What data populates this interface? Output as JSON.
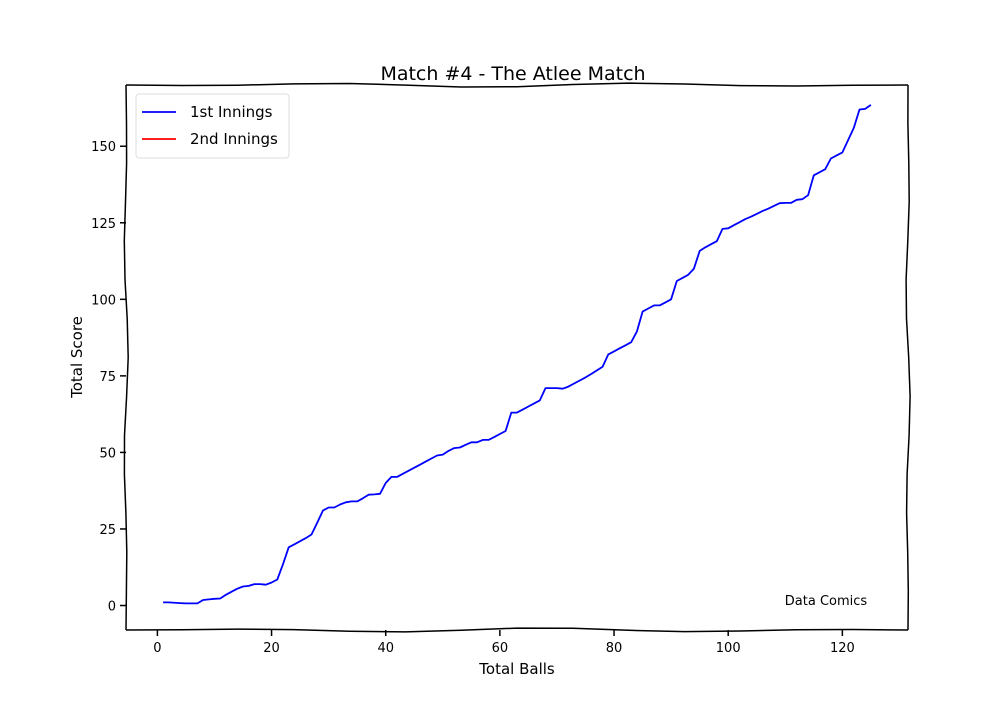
{
  "chart_data": {
    "type": "line",
    "title": "Match #4 - The Atlee Match",
    "xlabel": "Total Balls",
    "ylabel": "Total Score",
    "xlim": [
      -5.5,
      131.5
    ],
    "ylim": [
      -8,
      170
    ],
    "xticks": [
      0,
      20,
      40,
      60,
      80,
      100,
      120
    ],
    "yticks": [
      0,
      25,
      50,
      75,
      100,
      125,
      150
    ],
    "grid": false,
    "legend_position": "top-left",
    "annotation": "Data Comics",
    "series": [
      {
        "name": "1st Innings",
        "color": "#0000ff",
        "points": [
          [
            1,
            1
          ],
          [
            2,
            1
          ],
          [
            4,
            0.8
          ],
          [
            5,
            0.7
          ],
          [
            6,
            0.7
          ],
          [
            7,
            0.7
          ],
          [
            8,
            1.8
          ],
          [
            9,
            2
          ],
          [
            10,
            2.2
          ],
          [
            11,
            2.3
          ],
          [
            12,
            3.5
          ],
          [
            13,
            4.5
          ],
          [
            14,
            5.5
          ],
          [
            15,
            6.2
          ],
          [
            16,
            6.4
          ],
          [
            17,
            7
          ],
          [
            18,
            7
          ],
          [
            19,
            6.8
          ],
          [
            20,
            7.5
          ],
          [
            21,
            8.5
          ],
          [
            22,
            13.5
          ],
          [
            23,
            19
          ],
          [
            24,
            20
          ],
          [
            25,
            21
          ],
          [
            26,
            22
          ],
          [
            27,
            23.2
          ],
          [
            28,
            27
          ],
          [
            29,
            31
          ],
          [
            30,
            32
          ],
          [
            31,
            32
          ],
          [
            32,
            33
          ],
          [
            33,
            33.7
          ],
          [
            34,
            34
          ],
          [
            35,
            34
          ],
          [
            36,
            35
          ],
          [
            37,
            36.2
          ],
          [
            38,
            36.3
          ],
          [
            39,
            36.5
          ],
          [
            40,
            40
          ],
          [
            41,
            42
          ],
          [
            42,
            42
          ],
          [
            43,
            43
          ],
          [
            44,
            44
          ],
          [
            45,
            45
          ],
          [
            46,
            46
          ],
          [
            47,
            47
          ],
          [
            48,
            48
          ],
          [
            49,
            49
          ],
          [
            50,
            49.3
          ],
          [
            51,
            50.5
          ],
          [
            52,
            51.4
          ],
          [
            53,
            51.6
          ],
          [
            54,
            52.5
          ],
          [
            55,
            53.3
          ],
          [
            56,
            53.3
          ],
          [
            57,
            54.1
          ],
          [
            58,
            54.1
          ],
          [
            59,
            55
          ],
          [
            60,
            56
          ],
          [
            61,
            57
          ],
          [
            62,
            63
          ],
          [
            63,
            63
          ],
          [
            64,
            64
          ],
          [
            65,
            65
          ],
          [
            66,
            66
          ],
          [
            67,
            67
          ],
          [
            68,
            71
          ],
          [
            69,
            71
          ],
          [
            70,
            71
          ],
          [
            71,
            70.8
          ],
          [
            72,
            71.5
          ],
          [
            73,
            72.5
          ],
          [
            74,
            73.5
          ],
          [
            75,
            74.5
          ],
          [
            76,
            75.6
          ],
          [
            77,
            76.8
          ],
          [
            78,
            78
          ],
          [
            79,
            82
          ],
          [
            80,
            83
          ],
          [
            81,
            84
          ],
          [
            82,
            85
          ],
          [
            83,
            86
          ],
          [
            84,
            89.5
          ],
          [
            85,
            96
          ],
          [
            86,
            97
          ],
          [
            87,
            98
          ],
          [
            88,
            98
          ],
          [
            89,
            99
          ],
          [
            90,
            100
          ],
          [
            91,
            106
          ],
          [
            92,
            107
          ],
          [
            93,
            108
          ],
          [
            94,
            110
          ],
          [
            95,
            115.8
          ],
          [
            96,
            117
          ],
          [
            97,
            118
          ],
          [
            98,
            119
          ],
          [
            99,
            123
          ],
          [
            100,
            123.2
          ],
          [
            101,
            124.2
          ],
          [
            102,
            125.2
          ],
          [
            103,
            126.2
          ],
          [
            104,
            127
          ],
          [
            105,
            127.9
          ],
          [
            106,
            128.8
          ],
          [
            107,
            129.6
          ],
          [
            108,
            130.5
          ],
          [
            109,
            131.4
          ],
          [
            110,
            131.5
          ],
          [
            111,
            131.5
          ],
          [
            112,
            132.5
          ],
          [
            113,
            132.7
          ],
          [
            114,
            134
          ],
          [
            115,
            140.5
          ],
          [
            116,
            141.5
          ],
          [
            117,
            142.5
          ],
          [
            118,
            146
          ],
          [
            119,
            147
          ],
          [
            120,
            148
          ],
          [
            121,
            152
          ],
          [
            122,
            156
          ],
          [
            123,
            162
          ],
          [
            124,
            162.2
          ],
          [
            125,
            163.5
          ]
        ]
      },
      {
        "name": "2nd Innings",
        "color": "#ff0000",
        "points": []
      }
    ]
  }
}
